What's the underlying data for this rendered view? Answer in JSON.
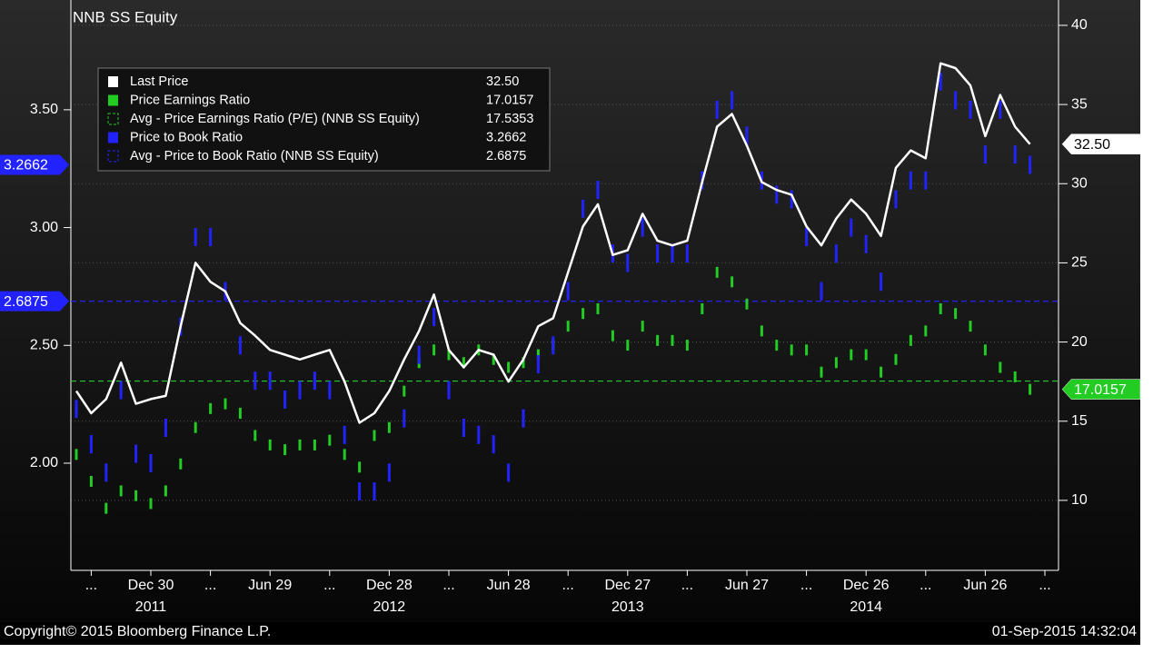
{
  "chart_data": {
    "type": "line",
    "title": "NNB SS Equity",
    "categories": [
      null,
      "...",
      null,
      null,
      null,
      "Dec 30",
      null,
      null,
      null,
      "...",
      null,
      null,
      null,
      "Jun 29",
      null,
      null,
      null,
      "...",
      null,
      null,
      null,
      "Dec 28",
      null,
      null,
      null,
      "...",
      null,
      null,
      null,
      "Jun 28",
      null,
      null,
      null,
      "...",
      null,
      null,
      null,
      "Dec 27",
      null,
      null,
      null,
      "...",
      null,
      null,
      null,
      "Jun 27",
      null,
      null,
      null,
      "...",
      null,
      null,
      null,
      "Dec 26",
      null,
      null,
      null,
      "...",
      null,
      null,
      null,
      "Jun 26",
      null,
      null,
      null,
      "..."
    ],
    "year_labels": [
      "2011",
      "2012",
      "2013",
      "2014"
    ],
    "ylim": [
      1.545,
      3.966
    ],
    "yticks": [
      {
        "value": 2,
        "label": "2.00"
      },
      {
        "value": 2.5,
        "label": "2.50"
      },
      {
        "value": 3,
        "label": "3.00"
      },
      {
        "value": 3.5,
        "label": "3.50"
      }
    ],
    "y2lim": [
      5.58,
      41.6
    ],
    "y2ticks": [
      10,
      15,
      20,
      25,
      30,
      35,
      40
    ],
    "grid": true,
    "series": [
      {
        "name": "Last Price",
        "color": "#ffffff",
        "axis": "y2",
        "style": "line",
        "last_label": "32.50",
        "values": [
          16.9,
          15.5,
          16.4,
          18.7,
          16.1,
          16.4,
          16.6,
          21,
          25,
          23.8,
          23.2,
          21.2,
          20.4,
          19.5,
          19.2,
          18.9,
          19.2,
          19.5,
          17.5,
          14.9,
          15.5,
          16.9,
          18.9,
          20.7,
          23,
          19.5,
          18.4,
          19.5,
          19.2,
          17.5,
          18.9,
          21,
          21.5,
          24.4,
          27.3,
          28.7,
          25.5,
          25.8,
          28.1,
          26.4,
          26.1,
          26.4,
          30.1,
          33.6,
          34.4,
          32.4,
          30.1,
          29.6,
          29.3,
          27.3,
          26.1,
          27.8,
          29,
          28.1,
          26.7,
          31,
          32.1,
          31.6,
          37.6,
          37.3,
          36.2,
          33,
          35.6,
          33.6,
          32.5,
          null
        ]
      },
      {
        "name": "Price Earnings Ratio",
        "color": "#22cc22",
        "axis": "y2",
        "style": "bars",
        "last_label": "17.0157",
        "values": [
          12.9,
          11.2,
          9.5,
          10.6,
          10.3,
          9.8,
          10.6,
          12.3,
          14.6,
          15.8,
          16.1,
          15.5,
          14.1,
          13.5,
          13.2,
          13.5,
          13.5,
          13.8,
          12.9,
          12.1,
          14.1,
          14.6,
          16.9,
          18.7,
          19.5,
          19.2,
          18.7,
          19.5,
          18.9,
          18.4,
          18.7,
          19.2,
          19.8,
          21,
          21.8,
          22.1,
          20.4,
          19.8,
          21,
          20.1,
          20.1,
          19.8,
          22.1,
          24.4,
          23.8,
          22.4,
          20.7,
          19.8,
          19.5,
          19.5,
          18.1,
          18.7,
          19.2,
          19.2,
          18.1,
          18.9,
          20.1,
          20.7,
          22.1,
          21.8,
          21,
          19.5,
          18.4,
          17.8,
          17.0157,
          null
        ]
      },
      {
        "name": "Avg - Price Earnings Ratio (P/E) (NNB SS Equity)",
        "color": "#22cc22",
        "axis": "y2",
        "style": "dashed",
        "value": 17.5353
      },
      {
        "name": "Price to Book Ratio",
        "color": "#2222ff",
        "axis": "y",
        "style": "bars",
        "last_label": "3.2662",
        "values": [
          2.23,
          2.08,
          1.96,
          2.31,
          2.04,
          2,
          2.15,
          2.58,
          2.96,
          2.96,
          2.73,
          2.5,
          2.35,
          2.35,
          2.27,
          2.31,
          2.35,
          2.31,
          2.12,
          1.88,
          1.88,
          1.96,
          2.19,
          2.46,
          2.62,
          2.31,
          2.15,
          2.12,
          2.08,
          1.96,
          2.19,
          2.42,
          2.5,
          2.73,
          3.08,
          3.16,
          2.89,
          2.85,
          3,
          2.89,
          2.89,
          2.89,
          3.2,
          3.5,
          3.54,
          3.39,
          3.2,
          3.14,
          3.12,
          2.96,
          2.73,
          2.89,
          3,
          2.93,
          2.77,
          3.12,
          3.2,
          3.2,
          3.62,
          3.54,
          3.5,
          3.31,
          3.5,
          3.31,
          3.2662,
          null
        ]
      },
      {
        "name": "Avg - Price to Book Ratio (NNB SS Equity)",
        "color": "#2222ff",
        "axis": "y",
        "style": "dashed",
        "value": 2.6875
      }
    ]
  },
  "footer": {
    "copyright": "Copyright© 2015 Bloomberg Finance L.P.",
    "timestamp": "01-Sep-2015 14:32:04"
  }
}
